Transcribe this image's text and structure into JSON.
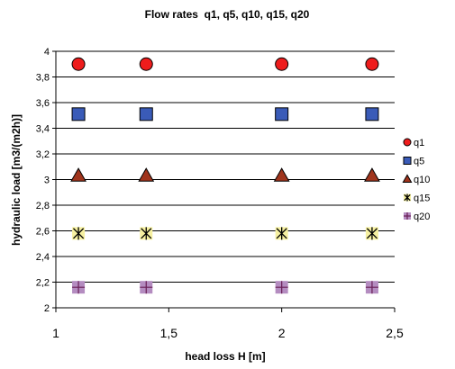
{
  "chart_data": {
    "type": "scatter",
    "title": "Flow rates  q1, q5, q10, q15, q20",
    "xlabel": "head loss H [m]",
    "ylabel": "hydraulic load [m3/(m2h)]",
    "xlim": [
      1,
      2.5
    ],
    "ylim": [
      2,
      4
    ],
    "x_ticks": [
      "1",
      "1,5",
      "2",
      "2,5"
    ],
    "y_ticks": [
      "2",
      "2,2",
      "2,4",
      "2,6",
      "2,8",
      "3",
      "3,2",
      "3,4",
      "3,6",
      "3,8",
      "4"
    ],
    "grid": "horizontal",
    "legend_position": "right",
    "series": [
      {
        "name": "q1",
        "marker": "circle",
        "color": "#ee1c1c",
        "x": [
          1.1,
          1.4,
          2.0,
          2.4
        ],
        "y": [
          3.9,
          3.9,
          3.9,
          3.9
        ]
      },
      {
        "name": "q5",
        "marker": "square",
        "color": "#3a5bb8",
        "x": [
          1.1,
          1.4,
          2.0,
          2.4
        ],
        "y": [
          3.51,
          3.51,
          3.51,
          3.51
        ]
      },
      {
        "name": "q10",
        "marker": "triangle",
        "color": "#a0341c",
        "x": [
          1.1,
          1.4,
          2.0,
          2.4
        ],
        "y": [
          3.03,
          3.03,
          3.03,
          3.03
        ]
      },
      {
        "name": "q15",
        "marker": "asterisk",
        "color": "#f6f0a0",
        "x": [
          1.1,
          1.4,
          2.0,
          2.4
        ],
        "y": [
          2.58,
          2.58,
          2.58,
          2.58
        ]
      },
      {
        "name": "q20",
        "marker": "plus",
        "color": "#b48cc0",
        "x": [
          1.1,
          1.4,
          2.0,
          2.4
        ],
        "y": [
          2.16,
          2.16,
          2.16,
          2.16
        ]
      }
    ]
  }
}
